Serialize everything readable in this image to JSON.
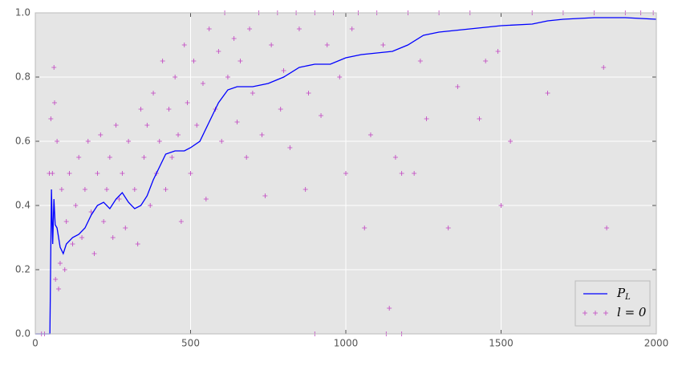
{
  "chart_data": {
    "type": "line",
    "xlim": [
      0,
      2000
    ],
    "ylim": [
      0,
      1
    ],
    "xticks": [
      0,
      500,
      1000,
      1500,
      2000
    ],
    "yticks": [
      {
        "value": 0,
        "label": "0.0"
      },
      0.2,
      0.4,
      0.6,
      0.8,
      {
        "value": 1,
        "label": "1.0"
      }
    ],
    "grid": true,
    "legend": "lower right",
    "series": [
      {
        "name": "P_L",
        "type": "line",
        "color": "#0000ff",
        "x": [
          0,
          40,
          47,
          52,
          56,
          60,
          64,
          70,
          80,
          90,
          100,
          120,
          140,
          160,
          180,
          200,
          220,
          240,
          260,
          280,
          300,
          320,
          340,
          360,
          380,
          400,
          420,
          450,
          480,
          500,
          530,
          560,
          590,
          620,
          650,
          700,
          750,
          800,
          850,
          900,
          950,
          1000,
          1050,
          1100,
          1150,
          1200,
          1250,
          1300,
          1350,
          1400,
          1450,
          1500,
          1600,
          1650,
          1700,
          1800,
          1900,
          2000
        ],
        "values": [
          0,
          0,
          0,
          0.45,
          0.28,
          0.42,
          0.34,
          0.33,
          0.27,
          0.25,
          0.28,
          0.3,
          0.31,
          0.33,
          0.37,
          0.4,
          0.41,
          0.39,
          0.42,
          0.44,
          0.41,
          0.39,
          0.4,
          0.43,
          0.48,
          0.52,
          0.56,
          0.57,
          0.57,
          0.58,
          0.6,
          0.66,
          0.72,
          0.76,
          0.77,
          0.77,
          0.78,
          0.8,
          0.83,
          0.84,
          0.84,
          0.86,
          0.87,
          0.875,
          0.88,
          0.9,
          0.93,
          0.94,
          0.945,
          0.95,
          0.955,
          0.96,
          0.965,
          0.975,
          0.98,
          0.985,
          0.985,
          0.98
        ]
      },
      {
        "name": "l = 0",
        "type": "scatter",
        "color": "#c040c0",
        "x": [
          20,
          30,
          45,
          50,
          55,
          60,
          62,
          65,
          70,
          75,
          80,
          85,
          95,
          100,
          110,
          120,
          130,
          140,
          150,
          160,
          170,
          180,
          190,
          200,
          210,
          220,
          230,
          240,
          250,
          260,
          270,
          280,
          290,
          300,
          320,
          330,
          340,
          350,
          360,
          370,
          380,
          390,
          400,
          410,
          420,
          430,
          440,
          450,
          460,
          470,
          480,
          490,
          500,
          510,
          520,
          540,
          550,
          560,
          580,
          590,
          600,
          610,
          620,
          640,
          650,
          660,
          680,
          690,
          700,
          720,
          730,
          740,
          760,
          780,
          790,
          800,
          820,
          840,
          850,
          870,
          880,
          900,
          920,
          940,
          960,
          980,
          1000,
          1020,
          1040,
          1060,
          1080,
          1100,
          1120,
          1140,
          1160,
          1180,
          1200,
          1220,
          1240,
          1260,
          1300,
          1330,
          1360,
          1400,
          1430,
          1450,
          1490,
          1500,
          1530,
          1600,
          1650,
          1700,
          1800,
          1830,
          1840,
          1900,
          1950,
          1990,
          900,
          1130,
          1180
        ],
        "values": [
          0,
          0,
          0.5,
          0.67,
          0.5,
          0.83,
          0.72,
          0.17,
          0.6,
          0.14,
          0.22,
          0.45,
          0.2,
          0.35,
          0.5,
          0.28,
          0.4,
          0.55,
          0.3,
          0.45,
          0.6,
          0.38,
          0.25,
          0.5,
          0.62,
          0.35,
          0.45,
          0.55,
          0.3,
          0.65,
          0.42,
          0.5,
          0.33,
          0.6,
          0.45,
          0.28,
          0.7,
          0.55,
          0.65,
          0.4,
          0.75,
          0.5,
          0.6,
          0.85,
          0.45,
          0.7,
          0.55,
          0.8,
          0.62,
          0.35,
          0.9,
          0.72,
          0.5,
          0.85,
          0.65,
          0.78,
          0.42,
          0.95,
          0.7,
          0.88,
          0.6,
          1,
          0.8,
          0.92,
          0.66,
          0.85,
          0.55,
          0.95,
          0.75,
          1,
          0.62,
          0.43,
          0.9,
          1,
          0.7,
          0.82,
          0.58,
          1,
          0.95,
          0.45,
          0.75,
          1,
          0.68,
          0.9,
          1,
          0.8,
          0.5,
          0.95,
          1,
          0.33,
          0.62,
          1,
          0.9,
          0.08,
          0.55,
          0.5,
          1,
          0.5,
          0.85,
          0.67,
          1,
          0.33,
          0.77,
          1,
          0.67,
          0.85,
          0.88,
          0.4,
          0.6,
          1,
          0.75,
          1,
          1,
          0.83,
          0.33,
          1,
          1,
          1,
          0,
          0,
          0
        ]
      }
    ]
  }
}
